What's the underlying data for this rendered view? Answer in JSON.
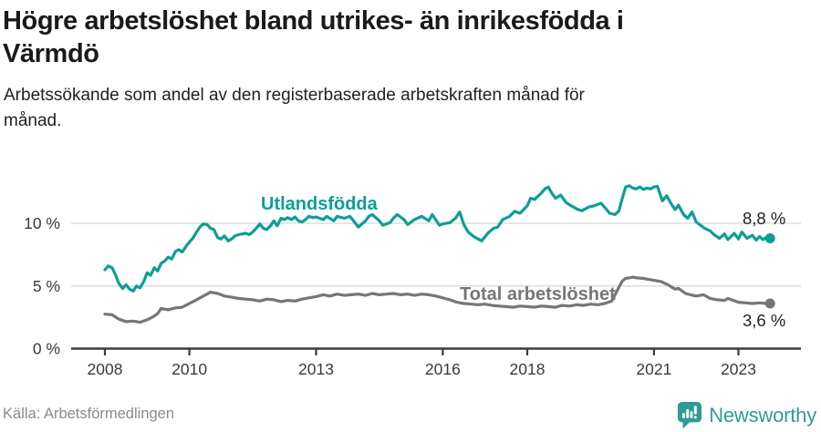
{
  "header": {
    "title_lines": [
      "Högre arbetslöshet bland utrikes- än inrikesfödda i",
      "Värmdö"
    ],
    "subtitle_lines": [
      "Arbetssökande som andel av den registerbaserade arbetskraften månad för",
      "månad."
    ]
  },
  "footer": {
    "source": "Källa: Arbetsförmedlingen",
    "brand": "Newsworthy",
    "brand_color": "#2f9b96",
    "logo_icon": "bar-chart-speech-bubble-icon"
  },
  "chart_data": {
    "type": "line",
    "title": "Högre arbetslöshet bland utrikes- än inrikesfödda i Värmdö",
    "subtitle": "Arbetssökande som andel av den registerbaserade arbetskraften månad för månad.",
    "unit": "%",
    "grid": true,
    "legend_position": "inline-labels",
    "xlim": [
      2007.7,
      2024.4
    ],
    "ylim": [
      0,
      13.5
    ],
    "x_ticks": [
      {
        "value": 2008,
        "label": "2008"
      },
      {
        "value": 2010,
        "label": "2010"
      },
      {
        "value": 2013,
        "label": "2013"
      },
      {
        "value": 2016,
        "label": "2016"
      },
      {
        "value": 2018,
        "label": "2018"
      },
      {
        "value": 2021,
        "label": "2021"
      },
      {
        "value": 2023,
        "label": "2023"
      }
    ],
    "y_ticks": [
      {
        "value": 0,
        "label": "0 %"
      },
      {
        "value": 5,
        "label": "5 %"
      },
      {
        "value": 10,
        "label": "10 %"
      }
    ],
    "colors": {
      "grid": "#dddddd",
      "axis": "#3c3c3c",
      "tick_label": "#3a3a3a",
      "end_label": "#222222"
    },
    "series": [
      {
        "name": "Utlandsfödda",
        "color": "#0d9e96",
        "end_label": "8,8 %",
        "points": [
          [
            2008.0,
            6.3
          ],
          [
            2008.08,
            6.6
          ],
          [
            2008.17,
            6.45
          ],
          [
            2008.25,
            5.9
          ],
          [
            2008.33,
            5.2
          ],
          [
            2008.42,
            4.8
          ],
          [
            2008.5,
            5.1
          ],
          [
            2008.58,
            4.75
          ],
          [
            2008.67,
            4.6
          ],
          [
            2008.75,
            5.0
          ],
          [
            2008.83,
            4.85
          ],
          [
            2008.92,
            5.35
          ],
          [
            2009.0,
            6.05
          ],
          [
            2009.08,
            5.85
          ],
          [
            2009.17,
            6.45
          ],
          [
            2009.25,
            6.2
          ],
          [
            2009.33,
            6.8
          ],
          [
            2009.42,
            7.0
          ],
          [
            2009.5,
            7.3
          ],
          [
            2009.58,
            7.15
          ],
          [
            2009.67,
            7.75
          ],
          [
            2009.75,
            7.9
          ],
          [
            2009.83,
            7.7
          ],
          [
            2009.92,
            8.15
          ],
          [
            2010.0,
            8.5
          ],
          [
            2010.08,
            8.8
          ],
          [
            2010.17,
            9.3
          ],
          [
            2010.25,
            9.7
          ],
          [
            2010.33,
            9.95
          ],
          [
            2010.42,
            9.9
          ],
          [
            2010.5,
            9.6
          ],
          [
            2010.58,
            9.5
          ],
          [
            2010.67,
            8.85
          ],
          [
            2010.75,
            8.75
          ],
          [
            2010.83,
            9.0
          ],
          [
            2010.92,
            8.6
          ],
          [
            2011.0,
            8.75
          ],
          [
            2011.08,
            9.0
          ],
          [
            2011.17,
            9.1
          ],
          [
            2011.25,
            9.15
          ],
          [
            2011.33,
            9.2
          ],
          [
            2011.42,
            9.1
          ],
          [
            2011.5,
            9.3
          ],
          [
            2011.58,
            9.6
          ],
          [
            2011.67,
            9.95
          ],
          [
            2011.75,
            9.6
          ],
          [
            2011.83,
            9.5
          ],
          [
            2011.92,
            9.8
          ],
          [
            2012.0,
            10.2
          ],
          [
            2012.08,
            9.8
          ],
          [
            2012.17,
            10.4
          ],
          [
            2012.25,
            10.3
          ],
          [
            2012.33,
            10.45
          ],
          [
            2012.42,
            10.3
          ],
          [
            2012.5,
            10.5
          ],
          [
            2012.58,
            10.2
          ],
          [
            2012.67,
            10.1
          ],
          [
            2012.75,
            10.3
          ],
          [
            2012.83,
            10.55
          ],
          [
            2012.92,
            10.45
          ],
          [
            2013.0,
            10.5
          ],
          [
            2013.17,
            10.3
          ],
          [
            2013.25,
            10.55
          ],
          [
            2013.42,
            10.2
          ],
          [
            2013.5,
            10.55
          ],
          [
            2013.67,
            10.4
          ],
          [
            2013.8,
            10.55
          ],
          [
            2013.92,
            10.05
          ],
          [
            2014.0,
            9.7
          ],
          [
            2014.17,
            10.2
          ],
          [
            2014.25,
            10.55
          ],
          [
            2014.33,
            10.7
          ],
          [
            2014.5,
            10.2
          ],
          [
            2014.58,
            9.85
          ],
          [
            2014.75,
            10.05
          ],
          [
            2014.83,
            10.4
          ],
          [
            2014.92,
            10.7
          ],
          [
            2015.08,
            10.3
          ],
          [
            2015.17,
            9.9
          ],
          [
            2015.33,
            10.3
          ],
          [
            2015.5,
            10.55
          ],
          [
            2015.67,
            10.2
          ],
          [
            2015.75,
            10.7
          ],
          [
            2015.92,
            9.85
          ],
          [
            2016.0,
            9.95
          ],
          [
            2016.17,
            10.05
          ],
          [
            2016.3,
            10.4
          ],
          [
            2016.4,
            10.9
          ],
          [
            2016.5,
            9.9
          ],
          [
            2016.6,
            9.3
          ],
          [
            2016.75,
            8.9
          ],
          [
            2016.92,
            8.6
          ],
          [
            2017.08,
            9.25
          ],
          [
            2017.2,
            9.6
          ],
          [
            2017.3,
            9.7
          ],
          [
            2017.42,
            10.3
          ],
          [
            2017.58,
            10.55
          ],
          [
            2017.7,
            10.95
          ],
          [
            2017.83,
            10.8
          ],
          [
            2018.0,
            11.4
          ],
          [
            2018.08,
            12.0
          ],
          [
            2018.17,
            11.9
          ],
          [
            2018.33,
            12.4
          ],
          [
            2018.42,
            12.75
          ],
          [
            2018.5,
            12.9
          ],
          [
            2018.58,
            12.4
          ],
          [
            2018.67,
            12.0
          ],
          [
            2018.79,
            12.25
          ],
          [
            2018.92,
            11.65
          ],
          [
            2019.04,
            11.4
          ],
          [
            2019.17,
            11.15
          ],
          [
            2019.29,
            11.0
          ],
          [
            2019.46,
            11.3
          ],
          [
            2019.58,
            11.4
          ],
          [
            2019.75,
            11.6
          ],
          [
            2019.85,
            11.2
          ],
          [
            2019.95,
            10.8
          ],
          [
            2020.08,
            10.7
          ],
          [
            2020.17,
            11.0
          ],
          [
            2020.25,
            12.0
          ],
          [
            2020.33,
            12.9
          ],
          [
            2020.42,
            13.0
          ],
          [
            2020.5,
            12.8
          ],
          [
            2020.58,
            12.75
          ],
          [
            2020.67,
            12.9
          ],
          [
            2020.75,
            12.7
          ],
          [
            2020.83,
            12.8
          ],
          [
            2020.92,
            12.75
          ],
          [
            2021.0,
            12.9
          ],
          [
            2021.08,
            12.95
          ],
          [
            2021.2,
            11.8
          ],
          [
            2021.3,
            12.2
          ],
          [
            2021.4,
            11.6
          ],
          [
            2021.5,
            11.1
          ],
          [
            2021.58,
            11.45
          ],
          [
            2021.7,
            10.7
          ],
          [
            2021.8,
            10.4
          ],
          [
            2021.9,
            10.9
          ],
          [
            2022.0,
            10.1
          ],
          [
            2022.1,
            9.85
          ],
          [
            2022.2,
            9.6
          ],
          [
            2022.33,
            9.4
          ],
          [
            2022.42,
            9.1
          ],
          [
            2022.55,
            8.8
          ],
          [
            2022.67,
            9.15
          ],
          [
            2022.75,
            8.7
          ],
          [
            2022.9,
            9.2
          ],
          [
            2023.0,
            8.75
          ],
          [
            2023.08,
            9.3
          ],
          [
            2023.2,
            8.8
          ],
          [
            2023.33,
            9.05
          ],
          [
            2023.42,
            8.65
          ],
          [
            2023.5,
            8.95
          ],
          [
            2023.58,
            8.7
          ],
          [
            2023.67,
            8.9
          ],
          [
            2023.75,
            8.8
          ]
        ]
      },
      {
        "name": "Total arbetslöshet",
        "color": "#767676",
        "end_label": "3,6 %",
        "points": [
          [
            2008.0,
            2.75
          ],
          [
            2008.17,
            2.7
          ],
          [
            2008.33,
            2.35
          ],
          [
            2008.5,
            2.15
          ],
          [
            2008.67,
            2.2
          ],
          [
            2008.83,
            2.1
          ],
          [
            2009.0,
            2.3
          ],
          [
            2009.17,
            2.6
          ],
          [
            2009.25,
            2.8
          ],
          [
            2009.33,
            3.2
          ],
          [
            2009.5,
            3.1
          ],
          [
            2009.67,
            3.25
          ],
          [
            2009.83,
            3.3
          ],
          [
            2010.0,
            3.6
          ],
          [
            2010.17,
            3.9
          ],
          [
            2010.33,
            4.2
          ],
          [
            2010.5,
            4.5
          ],
          [
            2010.67,
            4.4
          ],
          [
            2010.83,
            4.2
          ],
          [
            2011.0,
            4.1
          ],
          [
            2011.17,
            4.0
          ],
          [
            2011.33,
            3.95
          ],
          [
            2011.5,
            3.9
          ],
          [
            2011.67,
            3.8
          ],
          [
            2011.83,
            3.95
          ],
          [
            2012.0,
            3.9
          ],
          [
            2012.17,
            3.75
          ],
          [
            2012.33,
            3.85
          ],
          [
            2012.5,
            3.8
          ],
          [
            2012.67,
            3.95
          ],
          [
            2012.83,
            4.05
          ],
          [
            2013.0,
            4.15
          ],
          [
            2013.17,
            4.3
          ],
          [
            2013.33,
            4.2
          ],
          [
            2013.5,
            4.35
          ],
          [
            2013.67,
            4.25
          ],
          [
            2013.83,
            4.3
          ],
          [
            2014.0,
            4.35
          ],
          [
            2014.17,
            4.25
          ],
          [
            2014.33,
            4.4
          ],
          [
            2014.5,
            4.3
          ],
          [
            2014.67,
            4.35
          ],
          [
            2014.83,
            4.4
          ],
          [
            2015.0,
            4.3
          ],
          [
            2015.17,
            4.35
          ],
          [
            2015.33,
            4.25
          ],
          [
            2015.5,
            4.35
          ],
          [
            2015.67,
            4.3
          ],
          [
            2015.83,
            4.2
          ],
          [
            2016.0,
            4.05
          ],
          [
            2016.17,
            3.9
          ],
          [
            2016.33,
            3.7
          ],
          [
            2016.5,
            3.6
          ],
          [
            2016.67,
            3.55
          ],
          [
            2016.83,
            3.5
          ],
          [
            2017.0,
            3.55
          ],
          [
            2017.17,
            3.45
          ],
          [
            2017.33,
            3.4
          ],
          [
            2017.5,
            3.35
          ],
          [
            2017.67,
            3.3
          ],
          [
            2017.83,
            3.4
          ],
          [
            2018.0,
            3.35
          ],
          [
            2018.17,
            3.3
          ],
          [
            2018.33,
            3.4
          ],
          [
            2018.5,
            3.35
          ],
          [
            2018.67,
            3.3
          ],
          [
            2018.83,
            3.45
          ],
          [
            2019.0,
            3.4
          ],
          [
            2019.17,
            3.5
          ],
          [
            2019.33,
            3.45
          ],
          [
            2019.5,
            3.55
          ],
          [
            2019.67,
            3.5
          ],
          [
            2019.83,
            3.6
          ],
          [
            2020.0,
            3.8
          ],
          [
            2020.08,
            4.3
          ],
          [
            2020.17,
            4.9
          ],
          [
            2020.25,
            5.4
          ],
          [
            2020.33,
            5.6
          ],
          [
            2020.42,
            5.65
          ],
          [
            2020.5,
            5.7
          ],
          [
            2020.58,
            5.65
          ],
          [
            2020.75,
            5.6
          ],
          [
            2020.92,
            5.5
          ],
          [
            2021.0,
            5.45
          ],
          [
            2021.17,
            5.35
          ],
          [
            2021.33,
            5.1
          ],
          [
            2021.42,
            4.9
          ],
          [
            2021.5,
            4.75
          ],
          [
            2021.58,
            4.8
          ],
          [
            2021.75,
            4.4
          ],
          [
            2021.92,
            4.25
          ],
          [
            2022.0,
            4.2
          ],
          [
            2022.17,
            4.3
          ],
          [
            2022.33,
            4.0
          ],
          [
            2022.5,
            3.9
          ],
          [
            2022.67,
            3.85
          ],
          [
            2022.75,
            4.0
          ],
          [
            2022.92,
            3.8
          ],
          [
            2023.0,
            3.7
          ],
          [
            2023.17,
            3.65
          ],
          [
            2023.33,
            3.6
          ],
          [
            2023.5,
            3.65
          ],
          [
            2023.67,
            3.6
          ],
          [
            2023.75,
            3.6
          ]
        ]
      }
    ]
  }
}
